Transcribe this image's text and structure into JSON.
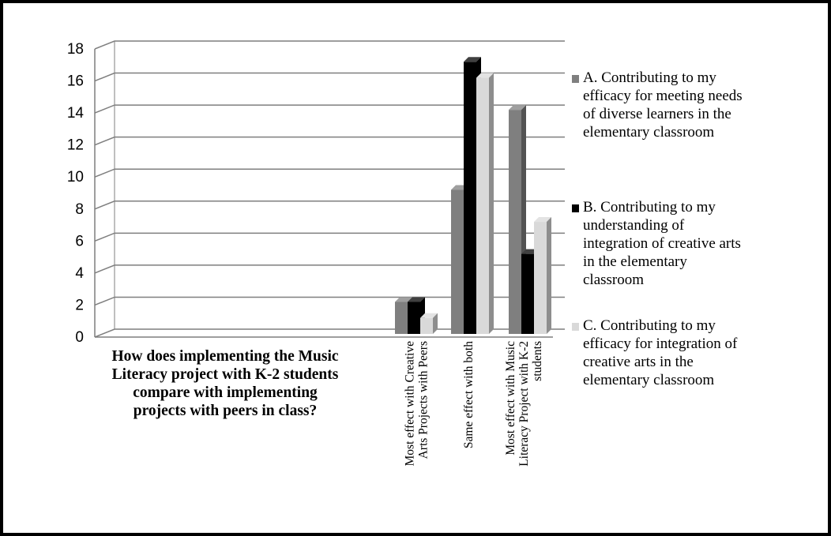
{
  "chart_data": {
    "type": "bar",
    "title": "",
    "xlabel_lines": [
      "How does implementing the Music",
      "Literacy project with K-2 students",
      "compare with implementing",
      "projects with peers in class?"
    ],
    "ylabel": "",
    "ylim": [
      0,
      18
    ],
    "yticks": [
      "0",
      "2",
      "4",
      "6",
      "8",
      "10",
      "12",
      "14",
      "16",
      "18"
    ],
    "grid": true,
    "legend_position": "right",
    "categories": [
      [
        "Most effect with Creative",
        "Arts Projects with Peers"
      ],
      [
        "Same effect with both"
      ],
      [
        "Most effect with Music",
        "Literacy Project with K-2",
        "students"
      ]
    ],
    "series": [
      {
        "name_lines": [
          "A. Contributing to my",
          "efficacy for meeting needs",
          "of diverse learners in the",
          "elementary classroom"
        ],
        "values": [
          2,
          9,
          14
        ],
        "color": "#7f7f7f"
      },
      {
        "name_lines": [
          "B. Contributing to my",
          "understanding of",
          "integration of creative arts",
          "in the elementary",
          "classroom"
        ],
        "values": [
          2,
          17,
          5
        ],
        "color": "#000000"
      },
      {
        "name_lines": [
          "C. Contributing to my",
          "efficacy for integration of",
          "creative arts in the",
          "elementary classroom"
        ],
        "values": [
          1,
          16,
          7
        ],
        "color": "#d9d9d9"
      }
    ]
  }
}
